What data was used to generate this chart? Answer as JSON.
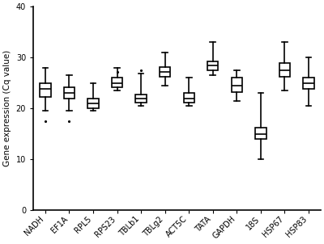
{
  "categories": [
    "NADH",
    "EF1A",
    "RPL5",
    "RPS23",
    "TBLb1",
    "TBLg2",
    "ACT5C",
    "TATA",
    "GAPDH",
    "18S",
    "HSP67",
    "HSP83"
  ],
  "boxes": [
    {
      "whislo": 19.5,
      "q1": 22.2,
      "med": 23.8,
      "q3": 25.0,
      "whishi": 28.0,
      "fliers": [
        17.5
      ]
    },
    {
      "whislo": 19.5,
      "q1": 22.0,
      "med": 23.0,
      "q3": 24.2,
      "whishi": 26.5,
      "fliers": [
        17.5
      ]
    },
    {
      "whislo": 19.5,
      "q1": 20.0,
      "med": 21.0,
      "q3": 22.0,
      "whishi": 25.0,
      "fliers": []
    },
    {
      "whislo": 23.5,
      "q1": 24.2,
      "med": 25.0,
      "q3": 26.0,
      "whishi": 28.0,
      "fliers": [
        27.2
      ]
    },
    {
      "whislo": 20.5,
      "q1": 21.2,
      "med": 22.0,
      "q3": 22.8,
      "whishi": 26.8,
      "fliers": [
        27.5
      ]
    },
    {
      "whislo": 24.5,
      "q1": 26.2,
      "med": 27.2,
      "q3": 28.2,
      "whishi": 31.0,
      "fliers": []
    },
    {
      "whislo": 20.5,
      "q1": 21.2,
      "med": 22.0,
      "q3": 23.0,
      "whishi": 26.0,
      "fliers": []
    },
    {
      "whislo": 26.5,
      "q1": 27.5,
      "med": 28.5,
      "q3": 29.2,
      "whishi": 33.0,
      "fliers": []
    },
    {
      "whislo": 21.5,
      "q1": 23.2,
      "med": 24.5,
      "q3": 26.0,
      "whishi": 27.5,
      "fliers": []
    },
    {
      "whislo": 10.0,
      "q1": 14.0,
      "med": 15.0,
      "q3": 16.2,
      "whishi": 23.0,
      "fliers": []
    },
    {
      "whislo": 23.5,
      "q1": 26.2,
      "med": 27.5,
      "q3": 29.0,
      "whishi": 33.0,
      "fliers": []
    },
    {
      "whislo": 20.5,
      "q1": 23.8,
      "med": 25.0,
      "q3": 26.0,
      "whishi": 30.0,
      "fliers": []
    }
  ],
  "ylim": [
    0,
    40
  ],
  "yticks": [
    0,
    10,
    20,
    30,
    40
  ],
  "ylabel": "Gene expression (Cq value)",
  "box_color": "white",
  "box_edgecolor": "black",
  "whisker_color": "black",
  "median_color": "black",
  "flier_color": "black",
  "linewidth": 1.2,
  "figsize": [
    4.0,
    3.02
  ],
  "dpi": 100,
  "tick_fontsize": 7.0,
  "ylabel_fontsize": 7.5,
  "box_width": 0.45
}
